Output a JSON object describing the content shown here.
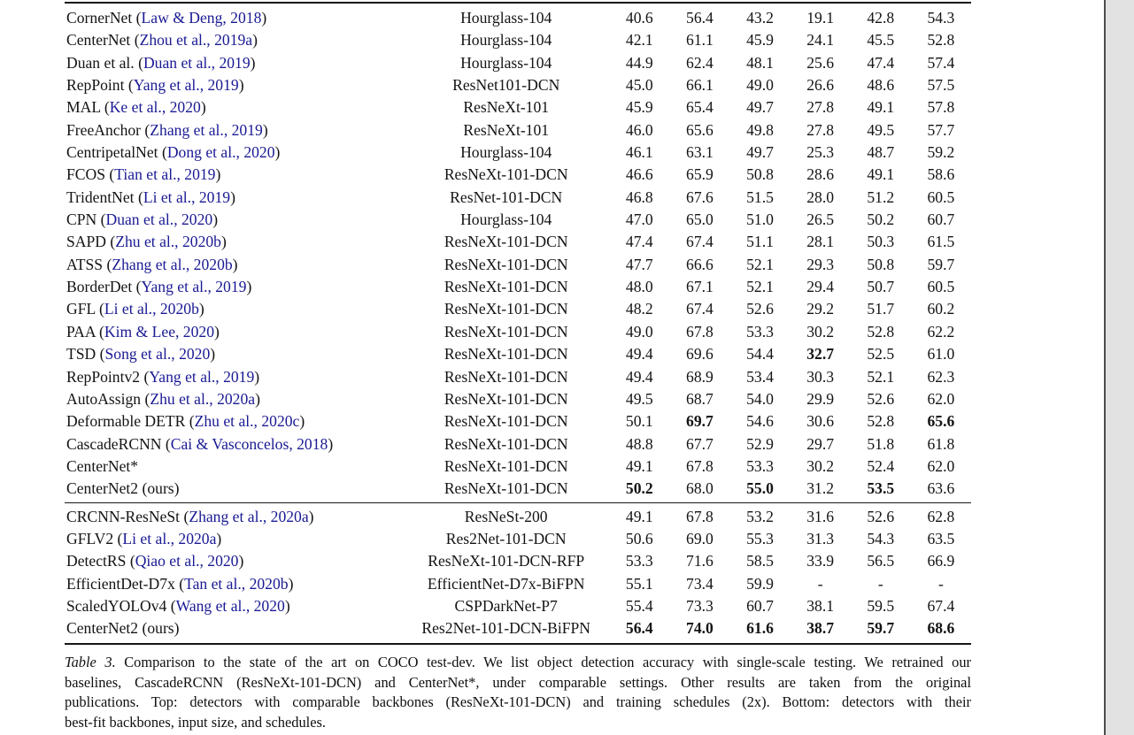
{
  "page": {
    "background_color": "#ffffff",
    "gutter_color": "#e2e2e2",
    "page_edge_color": "#4d4d4d",
    "link_color": "#1a1a94"
  },
  "table": {
    "sections": [
      {
        "rows": [
          {
            "method": "CornerNet",
            "cite": "Law & Deng, 2018",
            "backbone": "Hourglass-104",
            "values": [
              "40.6",
              "56.4",
              "43.2",
              "19.1",
              "42.8",
              "54.3"
            ],
            "bold": []
          },
          {
            "method": "CenterNet",
            "cite": "Zhou et al., 2019a",
            "backbone": "Hourglass-104",
            "values": [
              "42.1",
              "61.1",
              "45.9",
              "24.1",
              "45.5",
              "52.8"
            ],
            "bold": []
          },
          {
            "method": "Duan et al.",
            "cite": "Duan et al., 2019",
            "backbone": "Hourglass-104",
            "values": [
              "44.9",
              "62.4",
              "48.1",
              "25.6",
              "47.4",
              "57.4"
            ],
            "bold": []
          },
          {
            "method": "RepPoint",
            "cite": "Yang et al., 2019",
            "backbone": "ResNet101-DCN",
            "values": [
              "45.0",
              "66.1",
              "49.0",
              "26.6",
              "48.6",
              "57.5"
            ],
            "bold": []
          },
          {
            "method": "MAL",
            "cite": "Ke et al., 2020",
            "backbone": "ResNeXt-101",
            "values": [
              "45.9",
              "65.4",
              "49.7",
              "27.8",
              "49.1",
              "57.8"
            ],
            "bold": []
          },
          {
            "method": "FreeAnchor",
            "cite": "Zhang et al., 2019",
            "backbone": "ResNeXt-101",
            "values": [
              "46.0",
              "65.6",
              "49.8",
              "27.8",
              "49.5",
              "57.7"
            ],
            "bold": []
          },
          {
            "method": "CentripetalNet",
            "cite": "Dong et al., 2020",
            "backbone": "Hourglass-104",
            "values": [
              "46.1",
              "63.1",
              "49.7",
              "25.3",
              "48.7",
              "59.2"
            ],
            "bold": []
          },
          {
            "method": "FCOS",
            "cite": "Tian et al., 2019",
            "backbone": "ResNeXt-101-DCN",
            "values": [
              "46.6",
              "65.9",
              "50.8",
              "28.6",
              "49.1",
              "58.6"
            ],
            "bold": []
          },
          {
            "method": "TridentNet",
            "cite": "Li et al., 2019",
            "backbone": "ResNet-101-DCN",
            "values": [
              "46.8",
              "67.6",
              "51.5",
              "28.0",
              "51.2",
              "60.5"
            ],
            "bold": []
          },
          {
            "method": "CPN",
            "cite": "Duan et al., 2020",
            "backbone": "Hourglass-104",
            "values": [
              "47.0",
              "65.0",
              "51.0",
              "26.5",
              "50.2",
              "60.7"
            ],
            "bold": []
          },
          {
            "method": "SAPD",
            "cite": "Zhu et al., 2020b",
            "backbone": "ResNeXt-101-DCN",
            "values": [
              "47.4",
              "67.4",
              "51.1",
              "28.1",
              "50.3",
              "61.5"
            ],
            "bold": []
          },
          {
            "method": "ATSS",
            "cite": "Zhang et al., 2020b",
            "backbone": "ResNeXt-101-DCN",
            "values": [
              "47.7",
              "66.6",
              "52.1",
              "29.3",
              "50.8",
              "59.7"
            ],
            "bold": []
          },
          {
            "method": "BorderDet",
            "cite": "Yang et al., 2019",
            "backbone": "ResNeXt-101-DCN",
            "values": [
              "48.0",
              "67.1",
              "52.1",
              "29.4",
              "50.7",
              "60.5"
            ],
            "bold": []
          },
          {
            "method": "GFL",
            "cite": "Li et al., 2020b",
            "backbone": "ResNeXt-101-DCN",
            "values": [
              "48.2",
              "67.4",
              "52.6",
              "29.2",
              "51.7",
              "60.2"
            ],
            "bold": []
          },
          {
            "method": "PAA",
            "cite": "Kim & Lee, 2020",
            "backbone": "ResNeXt-101-DCN",
            "values": [
              "49.0",
              "67.8",
              "53.3",
              "30.2",
              "52.8",
              "62.2"
            ],
            "bold": []
          },
          {
            "method": "TSD",
            "cite": "Song et al., 2020",
            "backbone": "ResNeXt-101-DCN",
            "values": [
              "49.4",
              "69.6",
              "54.4",
              "32.7",
              "52.5",
              "61.0"
            ],
            "bold": [
              3
            ]
          },
          {
            "method": "RepPointv2",
            "cite": "Yang et al., 2019",
            "backbone": "ResNeXt-101-DCN",
            "values": [
              "49.4",
              "68.9",
              "53.4",
              "30.3",
              "52.1",
              "62.3"
            ],
            "bold": []
          },
          {
            "method": "AutoAssign",
            "cite": "Zhu et al., 2020a",
            "backbone": "ResNeXt-101-DCN",
            "values": [
              "49.5",
              "68.7",
              "54.0",
              "29.9",
              "52.6",
              "62.0"
            ],
            "bold": []
          },
          {
            "method": "Deformable DETR",
            "cite": "Zhu et al., 2020c",
            "backbone": "ResNeXt-101-DCN",
            "values": [
              "50.1",
              "69.7",
              "54.6",
              "30.6",
              "52.8",
              "65.6"
            ],
            "bold": [
              1,
              5
            ]
          },
          {
            "method": "CascadeRCNN",
            "cite": "Cai & Vasconcelos, 2018",
            "backbone": "ResNeXt-101-DCN",
            "values": [
              "48.8",
              "67.7",
              "52.9",
              "29.7",
              "51.8",
              "61.8"
            ],
            "bold": []
          },
          {
            "method": "CenterNet*",
            "cite": null,
            "backbone": "ResNeXt-101-DCN",
            "values": [
              "49.1",
              "67.8",
              "53.3",
              "30.2",
              "52.4",
              "62.0"
            ],
            "bold": []
          },
          {
            "method": "CenterNet2 (ours)",
            "cite": null,
            "backbone": "ResNeXt-101-DCN",
            "values": [
              "50.2",
              "68.0",
              "55.0",
              "31.2",
              "53.5",
              "63.6"
            ],
            "bold": [
              0,
              2,
              4
            ]
          }
        ]
      },
      {
        "rows": [
          {
            "method": "CRCNN-ResNeSt",
            "cite": "Zhang et al., 2020a",
            "backbone": "ResNeSt-200",
            "values": [
              "49.1",
              "67.8",
              "53.2",
              "31.6",
              "52.6",
              "62.8"
            ],
            "bold": []
          },
          {
            "method": "GFLV2",
            "cite": "Li et al., 2020a",
            "backbone": "Res2Net-101-DCN",
            "values": [
              "50.6",
              "69.0",
              "55.3",
              "31.3",
              "54.3",
              "63.5"
            ],
            "bold": []
          },
          {
            "method": "DetectRS",
            "cite": "Qiao et al., 2020",
            "backbone": "ResNeXt-101-DCN-RFP",
            "values": [
              "53.3",
              "71.6",
              "58.5",
              "33.9",
              "56.5",
              "66.9"
            ],
            "bold": []
          },
          {
            "method": "EfficientDet-D7x",
            "cite": "Tan et al., 2020b",
            "backbone": "EfficientNet-D7x-BiFPN",
            "values": [
              "55.1",
              "73.4",
              "59.9",
              "-",
              "-",
              "-"
            ],
            "bold": []
          },
          {
            "method": "ScaledYOLOv4",
            "cite": "Wang et al., 2020",
            "backbone": "CSPDarkNet-P7",
            "values": [
              "55.4",
              "73.3",
              "60.7",
              "38.1",
              "59.5",
              "67.4"
            ],
            "bold": []
          },
          {
            "method": "CenterNet2 (ours)",
            "cite": null,
            "backbone": "Res2Net-101-DCN-BiFPN",
            "values": [
              "56.4",
              "74.0",
              "61.6",
              "38.7",
              "59.7",
              "68.6"
            ],
            "bold": [
              0,
              1,
              2,
              3,
              4,
              5
            ]
          }
        ]
      }
    ]
  },
  "caption": {
    "label": "Table 3.",
    "lines": [
      "Comparison to the state of the art on COCO test-dev. We list object detection accuracy with single-scale testing. We retrained our",
      "baselines, CascadeRCNN (ResNeXt-101-DCN) and CenterNet*, under comparable settings. Other results are taken from the original",
      "publications. Top: detectors with comparable backbones (ResNeXt-101-DCN) and training schedules (2x). Bottom: detectors with their",
      "best-fit backbones, input size, and schedules."
    ]
  }
}
